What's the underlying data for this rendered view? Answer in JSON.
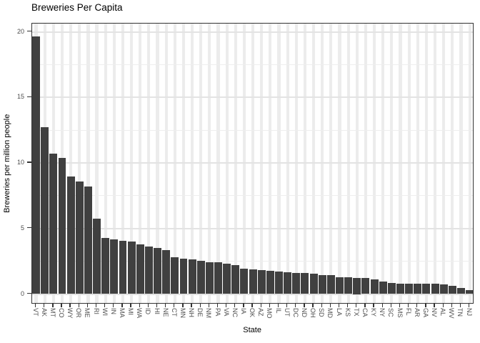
{
  "chart_data": {
    "type": "bar",
    "title": "Breweries Per Capita",
    "xlabel": "State",
    "ylabel": "Breweries per million people",
    "categories": [
      "VT",
      "AK",
      "MT",
      "CO",
      "WY",
      "OR",
      "ME",
      "RI",
      "WI",
      "IN",
      "MA",
      "MI",
      "WA",
      "ID",
      "HI",
      "NE",
      "CT",
      "MN",
      "NH",
      "DE",
      "NM",
      "PA",
      "VA",
      "NC",
      "IA",
      "OK",
      "AZ",
      "MO",
      "IL",
      "UT",
      "DC",
      "ND",
      "OH",
      "SD",
      "MD",
      "LA",
      "KS",
      "TX",
      "CA",
      "KY",
      "NY",
      "SC",
      "MS",
      "FL",
      "AR",
      "GA",
      "NV",
      "AL",
      "WV",
      "TN",
      "NJ"
    ],
    "values": [
      19.65,
      12.7,
      10.7,
      10.4,
      8.95,
      8.6,
      8.2,
      5.75,
      4.3,
      4.15,
      4.05,
      4.0,
      3.8,
      3.65,
      3.5,
      3.35,
      2.8,
      2.7,
      2.65,
      2.55,
      2.42,
      2.4,
      2.33,
      2.21,
      1.96,
      1.9,
      1.82,
      1.78,
      1.72,
      1.67,
      1.63,
      1.6,
      1.56,
      1.45,
      1.42,
      1.3,
      1.27,
      1.25,
      1.22,
      1.1,
      0.95,
      0.85,
      0.8,
      0.8,
      0.8,
      0.78,
      0.78,
      0.75,
      0.6,
      0.45,
      0.3
    ],
    "yticks": [
      0,
      5,
      10,
      15,
      20
    ],
    "yticks_minor": [
      2.5,
      7.5,
      12.5,
      17.5
    ],
    "ylim": [
      0,
      20.65
    ],
    "grid": "on",
    "legend": "none",
    "style": {
      "bar_color": "#404040",
      "panel_border_color": "#333333",
      "major_grid_color": "#e3e3e3",
      "minor_grid_color": "#eeeeee",
      "category_grid_color": "#ececec",
      "tick_color": "#333333",
      "tick_label_color": "#4d4d4d",
      "title_color": "#000000"
    }
  }
}
